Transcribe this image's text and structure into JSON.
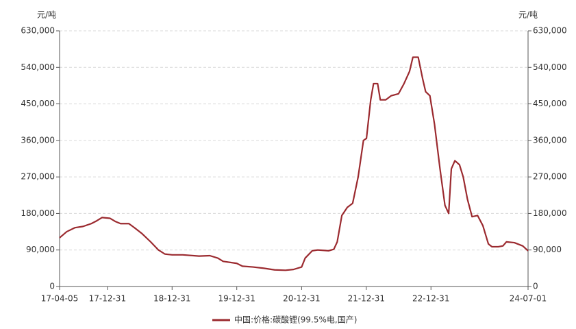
{
  "chart_data": {
    "type": "line",
    "y_label": "元/吨",
    "y2_label": "元/吨",
    "x": [
      "17-04-05",
      "17-05-15",
      "17-07-01",
      "17-08-15",
      "17-10-01",
      "17-11-01",
      "17-12-01",
      "18-01-15",
      "18-02-15",
      "18-03-15",
      "18-05-01",
      "18-06-01",
      "18-07-15",
      "18-09-01",
      "18-10-15",
      "18-11-20",
      "18-12-31",
      "19-03-01",
      "19-06-01",
      "19-08-01",
      "19-09-15",
      "19-10-15",
      "19-12-31",
      "20-02-01",
      "20-04-01",
      "20-06-01",
      "20-08-01",
      "20-10-01",
      "20-11-15",
      "20-12-31",
      "21-01-20",
      "21-03-01",
      "21-04-01",
      "21-06-01",
      "21-07-01",
      "21-07-20",
      "21-08-15",
      "21-09-15",
      "21-10-15",
      "21-11-15",
      "21-12-15",
      "22-01-01",
      "22-01-25",
      "22-02-10",
      "22-03-05",
      "22-03-20",
      "22-04-20",
      "22-05-20",
      "22-07-01",
      "22-08-01",
      "22-09-01",
      "22-09-20",
      "22-10-20",
      "22-11-15",
      "22-12-01",
      "22-12-25",
      "23-01-20",
      "23-02-20",
      "23-03-20",
      "23-04-10",
      "23-04-25",
      "23-05-15",
      "23-06-10",
      "23-07-01",
      "23-07-25",
      "23-08-20",
      "23-09-20",
      "23-10-20",
      "23-11-20",
      "23-12-10",
      "24-01-15",
      "24-02-10",
      "24-03-01",
      "24-04-15",
      "24-06-01",
      "24-07-01"
    ],
    "series": [
      {
        "name": "中国:价格:碳酸锂(99.5%电,国产)",
        "color": "#9b2a2f",
        "values": [
          120000,
          135000,
          145000,
          148000,
          155000,
          162000,
          170000,
          168000,
          160000,
          155000,
          155000,
          145000,
          130000,
          110000,
          90000,
          80000,
          78000,
          78000,
          75000,
          76000,
          70000,
          62000,
          57000,
          50000,
          48000,
          45000,
          41000,
          40000,
          42000,
          48000,
          70000,
          88000,
          90000,
          88000,
          92000,
          110000,
          175000,
          195000,
          205000,
          270000,
          360000,
          365000,
          460000,
          500000,
          500000,
          460000,
          460000,
          470000,
          475000,
          500000,
          530000,
          565000,
          565000,
          510000,
          480000,
          470000,
          400000,
          290000,
          200000,
          180000,
          290000,
          310000,
          300000,
          270000,
          215000,
          172000,
          175000,
          150000,
          105000,
          98000,
          98000,
          100000,
          110000,
          108000,
          100000,
          88000
        ]
      }
    ],
    "xlim": [
      "17-04-05",
      "24-07-01"
    ],
    "xticks": [
      "17-04-05",
      "17-12-31",
      "18-12-31",
      "19-12-31",
      "20-12-31",
      "21-12-31",
      "22-12-31",
      "24-07-01"
    ],
    "ylim": [
      0,
      630000
    ],
    "yticks": [
      0,
      {
        "value": 90000,
        "label": "90,000"
      },
      {
        "value": 180000,
        "label": "180,000"
      },
      {
        "value": 270000,
        "label": "270,000"
      },
      {
        "value": 360000,
        "label": "360,000"
      },
      {
        "value": 450000,
        "label": "450,000"
      },
      {
        "value": 540000,
        "label": "540,000"
      },
      {
        "value": 630000,
        "label": "630,000"
      }
    ],
    "y2lim": [
      0,
      630000
    ],
    "y2ticks": [
      0,
      {
        "value": 90000,
        "label": "90,000"
      },
      {
        "value": 180000,
        "label": "180,000"
      },
      {
        "value": 270000,
        "label": "270,000"
      },
      {
        "value": 360000,
        "label": "360,000"
      },
      {
        "value": 450000,
        "label": "450,000"
      },
      {
        "value": 540000,
        "label": "540,000"
      },
      {
        "value": 630000,
        "label": "630,000"
      }
    ],
    "grid": true
  }
}
